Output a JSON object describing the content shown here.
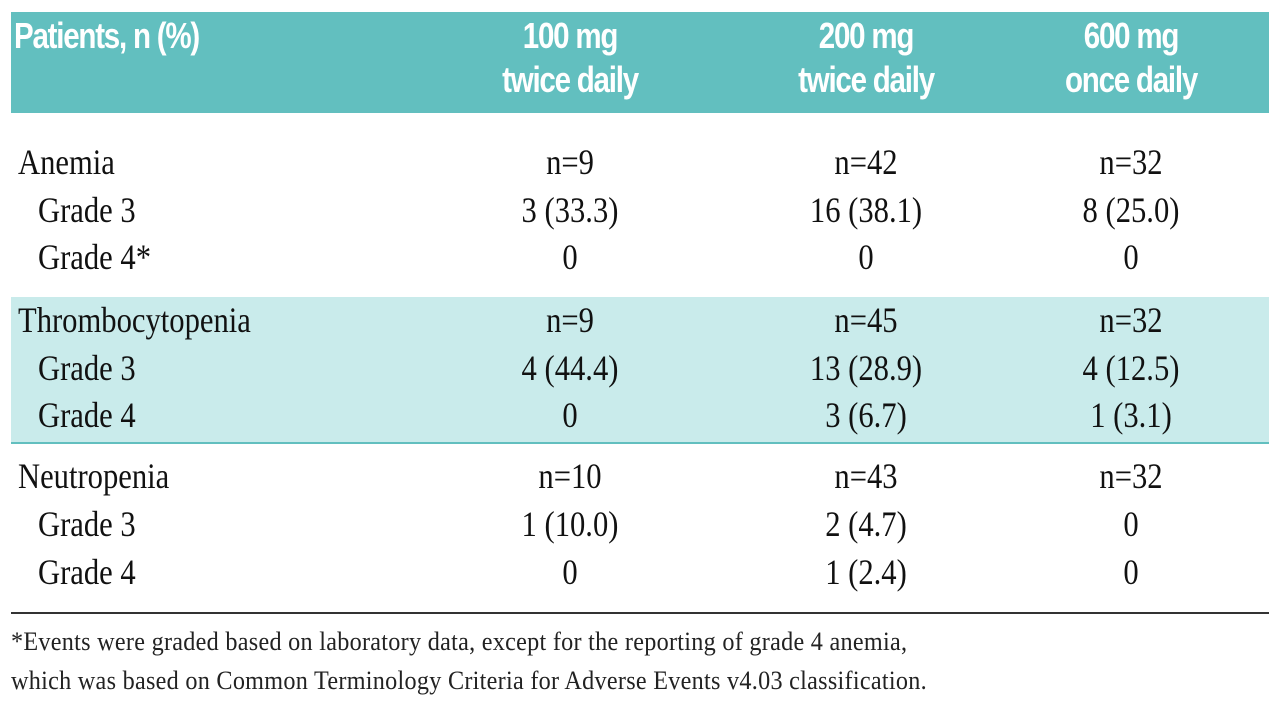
{
  "header": {
    "col0": "Patients, n (%)",
    "col1": [
      "100 mg",
      "twice daily"
    ],
    "col2": [
      "200 mg",
      "twice daily"
    ],
    "col3": [
      "600 mg",
      "once daily"
    ]
  },
  "colors": {
    "header_bg": "#62bfbf",
    "band_bg": "#c9ebeb"
  },
  "rows": [
    {
      "label": "Anemia",
      "v": [
        "n=9",
        "n=42",
        "n=32"
      ]
    },
    {
      "label": "Grade 3",
      "v": [
        "3 (33.3)",
        "16 (38.1)",
        "8 (25.0)"
      ]
    },
    {
      "label": "Grade 4*",
      "v": [
        "0",
        "0",
        "0"
      ]
    },
    {
      "label": "Thrombocytopenia",
      "v": [
        "n=9",
        "n=45",
        "n=32"
      ]
    },
    {
      "label": "Grade 3",
      "v": [
        "4 (44.4)",
        "13 (28.9)",
        "4 (12.5)"
      ]
    },
    {
      "label": "Grade 4",
      "v": [
        "0",
        "3 (6.7)",
        "1 (3.1)"
      ]
    },
    {
      "label": "Neutropenia",
      "v": [
        "n=10",
        "n=43",
        "n=32"
      ]
    },
    {
      "label": "Grade 3",
      "v": [
        "1 (10.0)",
        "2 (4.7)",
        "0"
      ]
    },
    {
      "label": "Grade 4",
      "v": [
        "0",
        "1 (2.4)",
        "0"
      ]
    }
  ],
  "footnote": [
    "*Events were graded based on laboratory data, except for the reporting of grade 4 anemia,",
    "which was based on Common Terminology Criteria for Adverse Events v4.03 classification."
  ]
}
